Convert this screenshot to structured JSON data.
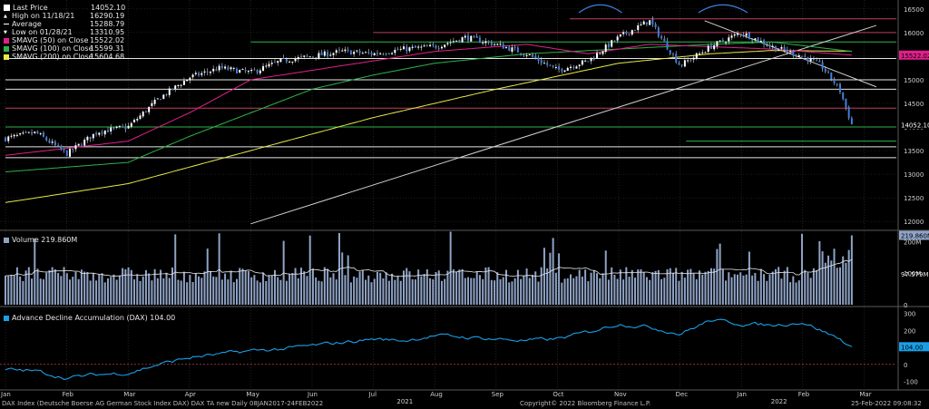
{
  "legend": {
    "items": [
      {
        "label": "Last Price",
        "value": "14052.10",
        "color": "#ffffff",
        "marker": "square-outline"
      },
      {
        "label": "High on 11/18/21",
        "value": "16290.19",
        "color": "#ffffff",
        "marker": "caret-up"
      },
      {
        "label": "Average",
        "value": "15288.79",
        "color": "#ffffff",
        "marker": "dash"
      },
      {
        "label": "Low on 01/28/21",
        "value": "13310.95",
        "color": "#ffffff",
        "marker": "caret-down"
      },
      {
        "label": "SMAVG (50)  on Close",
        "value": "15522.02",
        "color": "#e0208a",
        "marker": "square"
      },
      {
        "label": "SMAVG (100)  on Close",
        "value": "15599.31",
        "color": "#2fb24a",
        "marker": "square"
      },
      {
        "label": "SMAVG (200)  on Close",
        "value": "15604.68",
        "color": "#e8e84a",
        "marker": "square"
      }
    ]
  },
  "volume_panel": {
    "title": "Volume 219.860M",
    "color": "#8fa3c6"
  },
  "ad_panel": {
    "title": "Advance Decline Accumulation (DAX)  104.00",
    "color": "#1a9ee6"
  },
  "footer": {
    "left": "DAX Index (Deutsche Boerse AG German Stock Index DAX) DAX TA new  Daily 08JAN2017-24FEB2022",
    "center": "Copyright© 2022 Bloomberg Finance L.P.",
    "right": "25-Feb-2022 09:08:32"
  },
  "chart_data": [
    {
      "type": "candlestick",
      "panel": "price",
      "x_ticks": [
        "Jan",
        "Feb",
        "Mar",
        "Apr",
        "May",
        "Jun",
        "Jul",
        "Aug",
        "Sep",
        "Oct",
        "Nov",
        "Dec",
        "Jan",
        "Feb",
        "Mar"
      ],
      "year_labels": [
        {
          "label": "2021",
          "month_index": 6.5
        },
        {
          "label": "2022",
          "month_index": 12.6
        }
      ],
      "y_ticks": [
        12000,
        12500,
        13000,
        13500,
        14000,
        14500,
        15000,
        15500,
        16000,
        16500
      ],
      "ylim": [
        11850,
        16650
      ],
      "current_price_label": "14052.10",
      "sma50_label": "15522.02",
      "monthly_close": [
        {
          "m": 0.0,
          "v": 13760
        },
        {
          "m": 0.5,
          "v": 13880
        },
        {
          "m": 1.0,
          "v": 13430
        },
        {
          "m": 1.5,
          "v": 13900
        },
        {
          "m": 2.0,
          "v": 14000
        },
        {
          "m": 2.5,
          "v": 14600
        },
        {
          "m": 3.0,
          "v": 15050
        },
        {
          "m": 3.5,
          "v": 15250
        },
        {
          "m": 4.0,
          "v": 15150
        },
        {
          "m": 4.5,
          "v": 15400
        },
        {
          "m": 5.0,
          "v": 15500
        },
        {
          "m": 5.5,
          "v": 15600
        },
        {
          "m": 6.0,
          "v": 15550
        },
        {
          "m": 6.5,
          "v": 15650
        },
        {
          "m": 7.0,
          "v": 15700
        },
        {
          "m": 7.5,
          "v": 15900
        },
        {
          "m": 8.0,
          "v": 15750
        },
        {
          "m": 8.5,
          "v": 15550
        },
        {
          "m": 9.0,
          "v": 15200
        },
        {
          "m": 9.5,
          "v": 15400
        },
        {
          "m": 10.0,
          "v": 15900
        },
        {
          "m": 10.5,
          "v": 16250
        },
        {
          "m": 11.0,
          "v": 15300
        },
        {
          "m": 11.5,
          "v": 15700
        },
        {
          "m": 12.0,
          "v": 16000
        },
        {
          "m": 12.5,
          "v": 15700
        },
        {
          "m": 13.0,
          "v": 15500
        },
        {
          "m": 13.3,
          "v": 15300
        },
        {
          "m": 13.6,
          "v": 14800
        },
        {
          "m": 13.8,
          "v": 14052
        }
      ],
      "sma50": [
        {
          "m": 0.0,
          "v": 13400
        },
        {
          "m": 2.0,
          "v": 13700
        },
        {
          "m": 3.0,
          "v": 14300
        },
        {
          "m": 4.0,
          "v": 15000
        },
        {
          "m": 5.0,
          "v": 15200
        },
        {
          "m": 7.0,
          "v": 15600
        },
        {
          "m": 8.5,
          "v": 15750
        },
        {
          "m": 9.5,
          "v": 15550
        },
        {
          "m": 10.5,
          "v": 15750
        },
        {
          "m": 11.5,
          "v": 15700
        },
        {
          "m": 12.5,
          "v": 15650
        },
        {
          "m": 13.8,
          "v": 15522
        }
      ],
      "sma100": [
        {
          "m": 0.0,
          "v": 13050
        },
        {
          "m": 2.0,
          "v": 13250
        },
        {
          "m": 3.0,
          "v": 13800
        },
        {
          "m": 4.0,
          "v": 14300
        },
        {
          "m": 5.0,
          "v": 14800
        },
        {
          "m": 6.0,
          "v": 15100
        },
        {
          "m": 7.0,
          "v": 15350
        },
        {
          "m": 8.5,
          "v": 15550
        },
        {
          "m": 10.0,
          "v": 15650
        },
        {
          "m": 11.5,
          "v": 15750
        },
        {
          "m": 12.5,
          "v": 15800
        },
        {
          "m": 13.8,
          "v": 15599
        }
      ],
      "sma200": [
        {
          "m": 0.0,
          "v": 12400
        },
        {
          "m": 2.0,
          "v": 12800
        },
        {
          "m": 4.0,
          "v": 13500
        },
        {
          "m": 6.0,
          "v": 14200
        },
        {
          "m": 8.0,
          "v": 14800
        },
        {
          "m": 10.0,
          "v": 15350
        },
        {
          "m": 11.5,
          "v": 15550
        },
        {
          "m": 12.5,
          "v": 15620
        },
        {
          "m": 13.8,
          "v": 15604
        }
      ],
      "horizontal_lines": [
        {
          "v": 16290,
          "m_start": 9.2,
          "color": "#c04060"
        },
        {
          "v": 16000,
          "m_start": 6.0,
          "color": "#c04060"
        },
        {
          "v": 15800,
          "m_start": 4.0,
          "color": "#2fb24a"
        },
        {
          "v": 15450,
          "m_start": 0.0,
          "color": "#e6e6e6"
        },
        {
          "v": 15000,
          "m_start": 0.0,
          "color": "#e6e6e6"
        },
        {
          "v": 14800,
          "m_start": 0.0,
          "color": "#e6e6e6"
        },
        {
          "v": 14400,
          "m_start": 0.0,
          "color": "#c04060"
        },
        {
          "v": 14000,
          "m_start": 0.0,
          "color": "#2fb24a"
        },
        {
          "v": 13700,
          "m_start": 11.1,
          "color": "#2fb24a"
        },
        {
          "v": 13580,
          "m_start": 0.0,
          "color": "#e6e6e6"
        },
        {
          "v": 13350,
          "m_start": 0.0,
          "color": "#e6e6e6"
        }
      ],
      "trendlines": [
        {
          "m1": 4.0,
          "v1": 11950,
          "m2": 14.2,
          "v2": 16150,
          "color": "#d0d0d0"
        },
        {
          "m1": 11.4,
          "v1": 16250,
          "m2": 14.2,
          "v2": 14850,
          "color": "#d0d0d0"
        }
      ]
    },
    {
      "type": "bar",
      "panel": "volume",
      "y_ticks": [
        "0",
        "100M",
        "200M"
      ],
      "ylim": [
        0,
        230
      ],
      "current_label": "219.860M",
      "average_label": "97.579M",
      "average_value": 97.579
    },
    {
      "type": "line",
      "panel": "advance_decline",
      "y_ticks": [
        -100,
        0,
        100,
        200,
        300
      ],
      "ylim": [
        -140,
        330
      ],
      "current_label": "104.00",
      "points": [
        {
          "m": 0.0,
          "v": -30
        },
        {
          "m": 0.5,
          "v": -40
        },
        {
          "m": 1.0,
          "v": -80
        },
        {
          "m": 1.5,
          "v": -60
        },
        {
          "m": 2.0,
          "v": -50
        },
        {
          "m": 2.5,
          "v": 0
        },
        {
          "m": 3.0,
          "v": 40
        },
        {
          "m": 3.5,
          "v": 60
        },
        {
          "m": 4.0,
          "v": 80
        },
        {
          "m": 4.5,
          "v": 90
        },
        {
          "m": 5.0,
          "v": 110
        },
        {
          "m": 5.5,
          "v": 130
        },
        {
          "m": 6.0,
          "v": 150
        },
        {
          "m": 6.5,
          "v": 140
        },
        {
          "m": 7.0,
          "v": 170
        },
        {
          "m": 7.5,
          "v": 160
        },
        {
          "m": 8.0,
          "v": 150
        },
        {
          "m": 8.5,
          "v": 140
        },
        {
          "m": 9.0,
          "v": 150
        },
        {
          "m": 9.5,
          "v": 190
        },
        {
          "m": 10.0,
          "v": 240
        },
        {
          "m": 10.5,
          "v": 220
        },
        {
          "m": 11.0,
          "v": 180
        },
        {
          "m": 11.5,
          "v": 260
        },
        {
          "m": 12.0,
          "v": 240
        },
        {
          "m": 12.5,
          "v": 230
        },
        {
          "m": 13.0,
          "v": 250
        },
        {
          "m": 13.3,
          "v": 200
        },
        {
          "m": 13.6,
          "v": 150
        },
        {
          "m": 13.8,
          "v": 104
        }
      ],
      "zero_line_color": "#c04040"
    }
  ]
}
